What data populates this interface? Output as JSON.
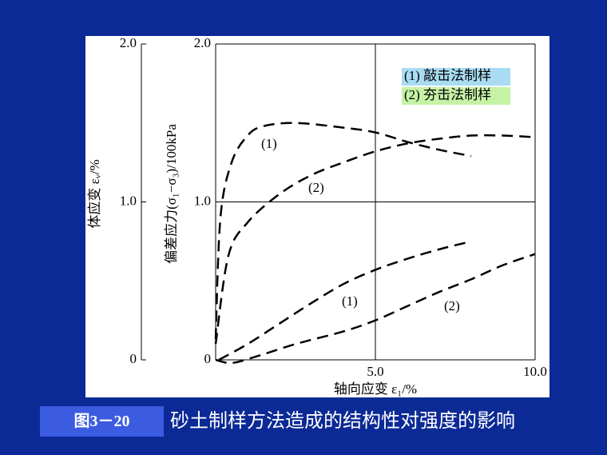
{
  "chart_data": {
    "type": "line",
    "xlabel": "轴向应变 ε₁/%",
    "ylabel": "偏差应力(σ₁−σ₃)/100kPa",
    "y2label": "体应变 εᵥ/%",
    "xlim": [
      0,
      10
    ],
    "xticks": [
      {
        "value": 5,
        "label": "5.0"
      },
      {
        "value": 10,
        "label": "10.0"
      }
    ],
    "ylim": [
      0,
      2
    ],
    "yticks": [
      0,
      {
        "value": 1,
        "label": "1.0"
      },
      {
        "value": 2,
        "label": "2.0"
      }
    ],
    "y2lim": [
      0,
      2
    ],
    "y2ticks": [
      0,
      {
        "value": 1,
        "label": "1.0"
      },
      {
        "value": 2,
        "label": "2.0"
      }
    ],
    "grid": true,
    "legend": [
      {
        "label": "(1) 敲击法制样",
        "color": "#a9dcf2"
      },
      {
        "label": "(2) 夯击法制样",
        "color": "#c6f2a6"
      }
    ],
    "series": [
      {
        "name": "(1)",
        "color": "#000000",
        "x": [
          0,
          0.15,
          0.5,
          1,
          1.5,
          2.5,
          4,
          5,
          6,
          7,
          8
        ],
        "values": [
          0.13,
          0.9,
          1.25,
          1.42,
          1.48,
          1.5,
          1.47,
          1.44,
          1.38,
          1.33,
          1.29
        ]
      },
      {
        "name": "(2)",
        "color": "#000000",
        "x": [
          0,
          0.4,
          1,
          2,
          3,
          4,
          5,
          6,
          7,
          8,
          9,
          10
        ],
        "values": [
          0.1,
          0.66,
          0.87,
          1.05,
          1.17,
          1.25,
          1.32,
          1.37,
          1.4,
          1.42,
          1.42,
          1.41
        ]
      },
      {
        "name": "(1)",
        "color": "#000000",
        "axis": "y2",
        "x": [
          0.1,
          1,
          2,
          3,
          4,
          5,
          6,
          7,
          8
        ],
        "values": [
          0,
          0.1,
          0.23,
          0.36,
          0.48,
          0.57,
          0.64,
          0.7,
          0.75
        ]
      },
      {
        "name": "(2)",
        "color": "#000000",
        "axis": "y2",
        "x": [
          0,
          0.5,
          1.25,
          2.5,
          4,
          5,
          6,
          7,
          8,
          9,
          10
        ],
        "values": [
          0,
          -0.02,
          0.02,
          0.1,
          0.18,
          0.25,
          0.34,
          0.43,
          0.51,
          0.6,
          0.67
        ]
      }
    ]
  },
  "caption": {
    "figure_label": "图3－20",
    "text": "砂土制样方法造成的结构性对强度的影响"
  }
}
